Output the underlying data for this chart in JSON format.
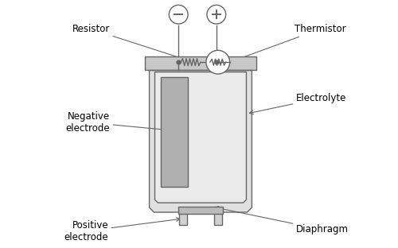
{
  "line_color": "#666666",
  "fill_cap": "#c8c8c8",
  "fill_body_outer": "#e0e0e0",
  "fill_body_inner": "#ebebeb",
  "fill_electrode": "#b0b0b0",
  "fill_diaphragm": "#bbbbbb",
  "fill_leg": "#d0d0d0",
  "labels": {
    "resistor": "Resistor",
    "thermistor": "Thermistor",
    "negative_electrode": "Negative\nelectrode",
    "positive_electrode": "Positive\nelectrode",
    "electrolyte": "Electrolyte",
    "diaphragm": "Diaphragm"
  },
  "font_size": 8.5
}
